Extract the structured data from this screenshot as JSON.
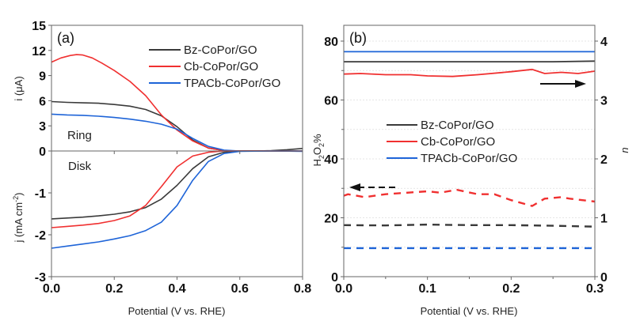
{
  "chart_data": [
    {
      "type": "line",
      "panel_label": "(a)",
      "xlabel": "Potential (V vs. RHE)",
      "xlim": [
        0.0,
        0.8
      ],
      "xticks": [
        "0.0",
        "0.2",
        "0.4",
        "0.6",
        "0.8"
      ],
      "xtick_values": [
        0.0,
        0.2,
        0.4,
        0.6,
        0.8
      ],
      "subplots": [
        {
          "name": "ring",
          "annotation": "Ring",
          "ylabel": "i (μA)",
          "ylim": [
            0,
            15
          ],
          "yticks": [
            "0",
            "3",
            "6",
            "9",
            "12",
            "15"
          ],
          "ytick_values": [
            0,
            3,
            6,
            9,
            12,
            15
          ],
          "series": [
            {
              "name": "Bz-CoPor/GO",
              "color": "#3a3a3a",
              "x": [
                0.0,
                0.05,
                0.1,
                0.15,
                0.2,
                0.25,
                0.3,
                0.35,
                0.4,
                0.45,
                0.5,
                0.55,
                0.6,
                0.65,
                0.7,
                0.75,
                0.8
              ],
              "y": [
                5.9,
                5.8,
                5.75,
                5.7,
                5.55,
                5.35,
                4.95,
                4.2,
                2.9,
                1.3,
                0.35,
                0.05,
                0.0,
                0.0,
                0.05,
                0.15,
                0.3
              ]
            },
            {
              "name": "Cb-CoPor/GO",
              "color": "#f03030",
              "x": [
                0.0,
                0.03,
                0.06,
                0.08,
                0.1,
                0.13,
                0.16,
                0.2,
                0.25,
                0.3,
                0.35,
                0.4,
                0.45,
                0.5,
                0.55,
                0.6,
                0.7,
                0.8
              ],
              "y": [
                10.6,
                11.1,
                11.4,
                11.5,
                11.45,
                11.1,
                10.5,
                9.6,
                8.3,
                6.6,
                4.3,
                2.5,
                1.2,
                0.35,
                0.05,
                0.0,
                0.0,
                0.0
              ]
            },
            {
              "name": "TPACb-CoPor/GO",
              "color": "#1e64d8",
              "x": [
                0.0,
                0.05,
                0.1,
                0.15,
                0.2,
                0.25,
                0.3,
                0.35,
                0.4,
                0.45,
                0.5,
                0.55,
                0.6,
                0.7,
                0.8
              ],
              "y": [
                4.4,
                4.3,
                4.25,
                4.15,
                4.0,
                3.8,
                3.55,
                3.2,
                2.6,
                1.5,
                0.55,
                0.1,
                0.0,
                0.0,
                -0.05
              ]
            }
          ]
        },
        {
          "name": "disk",
          "annotation": "Disk",
          "ylabel": "j (mA cm⁻²)",
          "ylim": [
            -3,
            0
          ],
          "yticks": [
            "-3",
            "-2",
            "-1",
            "0"
          ],
          "ytick_values": [
            -3,
            -2,
            -1,
            0
          ],
          "series": [
            {
              "name": "Bz-CoPor/GO",
              "color": "#3a3a3a",
              "x": [
                0.0,
                0.05,
                0.1,
                0.15,
                0.2,
                0.25,
                0.3,
                0.35,
                0.4,
                0.45,
                0.5,
                0.55,
                0.6,
                0.7,
                0.8
              ],
              "y": [
                -1.62,
                -1.6,
                -1.58,
                -1.55,
                -1.51,
                -1.45,
                -1.35,
                -1.15,
                -0.82,
                -0.42,
                -0.14,
                -0.03,
                0.0,
                0.0,
                0.0
              ]
            },
            {
              "name": "Cb-CoPor/GO",
              "color": "#f03030",
              "x": [
                0.0,
                0.05,
                0.1,
                0.15,
                0.2,
                0.25,
                0.3,
                0.35,
                0.4,
                0.45,
                0.5,
                0.55,
                0.6,
                0.7,
                0.8
              ],
              "y": [
                -1.83,
                -1.8,
                -1.77,
                -1.73,
                -1.66,
                -1.55,
                -1.3,
                -0.85,
                -0.38,
                -0.12,
                -0.03,
                0.0,
                0.0,
                0.0,
                0.0
              ]
            },
            {
              "name": "TPACb-CoPor/GO",
              "color": "#1e64d8",
              "x": [
                0.0,
                0.05,
                0.1,
                0.15,
                0.2,
                0.25,
                0.3,
                0.35,
                0.4,
                0.45,
                0.5,
                0.55,
                0.6,
                0.7,
                0.8
              ],
              "y": [
                -2.32,
                -2.27,
                -2.22,
                -2.17,
                -2.1,
                -2.02,
                -1.9,
                -1.7,
                -1.3,
                -0.7,
                -0.25,
                -0.06,
                -0.01,
                0.0,
                0.0
              ]
            }
          ]
        }
      ],
      "legend": {
        "entries": [
          "Bz-CoPor/GO",
          "Cb-CoPor/GO",
          "TPACb-CoPor/GO"
        ],
        "placement": "top-right"
      }
    },
    {
      "type": "line",
      "panel_label": "(b)",
      "xlabel": "Potential (V vs. RHE)",
      "xlim": [
        0.0,
        0.3
      ],
      "xticks": [
        "0.0",
        "0.1",
        "0.2",
        "0.3"
      ],
      "xtick_values": [
        0.0,
        0.1,
        0.2,
        0.3
      ],
      "ylabel_left": "H₂O₂%",
      "ylim_left": [
        0,
        85
      ],
      "yticks_left": [
        "0",
        "20",
        "40",
        "60",
        "80"
      ],
      "ytick_values_left": [
        0,
        20,
        40,
        60,
        80
      ],
      "ylabel_right": "n",
      "ylim_right": [
        0,
        4.25
      ],
      "yticks_right": [
        "0",
        "1",
        "2",
        "3",
        "4"
      ],
      "ytick_values_right": [
        0,
        1,
        2,
        3,
        4
      ],
      "grid": true,
      "series_n": [
        {
          "name": "Bz-CoPor/GO",
          "color": "#3a3a3a",
          "axis": "right",
          "style": "solid",
          "x": [
            0.0,
            0.05,
            0.1,
            0.15,
            0.2,
            0.25,
            0.3
          ],
          "y": [
            3.65,
            3.65,
            3.65,
            3.65,
            3.65,
            3.65,
            3.66
          ]
        },
        {
          "name": "Cb-CoPor/GO",
          "color": "#f03030",
          "axis": "right",
          "style": "solid",
          "x": [
            0.0,
            0.02,
            0.05,
            0.08,
            0.1,
            0.13,
            0.16,
            0.2,
            0.225,
            0.24,
            0.26,
            0.28,
            0.3
          ],
          "y": [
            3.44,
            3.45,
            3.43,
            3.43,
            3.41,
            3.4,
            3.43,
            3.48,
            3.52,
            3.45,
            3.47,
            3.45,
            3.49
          ]
        },
        {
          "name": "TPACb-CoPor/GO",
          "color": "#1e64d8",
          "axis": "right",
          "style": "solid",
          "x": [
            0.0,
            0.3
          ],
          "y": [
            3.82,
            3.82
          ]
        }
      ],
      "series_h2o2": [
        {
          "name": "Bz-CoPor/GO",
          "color": "#3a3a3a",
          "axis": "left",
          "style": "dashed",
          "x": [
            0.0,
            0.05,
            0.1,
            0.15,
            0.2,
            0.25,
            0.3
          ],
          "y": [
            17.5,
            17.4,
            17.7,
            17.5,
            17.5,
            17.3,
            17.0
          ]
        },
        {
          "name": "Cb-CoPor/GO",
          "color": "#f03030",
          "axis": "left",
          "style": "dashed",
          "x": [
            0.0,
            0.005,
            0.025,
            0.05,
            0.1,
            0.115,
            0.135,
            0.16,
            0.18,
            0.2,
            0.225,
            0.24,
            0.26,
            0.27,
            0.3
          ],
          "y": [
            27.5,
            28.0,
            27.0,
            28.0,
            29.0,
            28.5,
            29.5,
            28.0,
            28.0,
            26.0,
            24.0,
            26.5,
            27.0,
            26.5,
            25.5
          ]
        },
        {
          "name": "TPACb-CoPor/GO",
          "color": "#1e64d8",
          "axis": "left",
          "style": "dashed",
          "x": [
            0.0,
            0.3
          ],
          "y": [
            9.7,
            9.7
          ]
        }
      ],
      "legend": {
        "entries": [
          "Bz-CoPor/GO",
          "Cb-CoPor/GO",
          "TPACb-CoPor/GO"
        ],
        "placement": "center-left"
      },
      "annotations": [
        {
          "type": "arrow",
          "direction": "right",
          "style": "solid",
          "meaning": "n refers to right axis"
        },
        {
          "type": "arrow",
          "direction": "left",
          "style": "dashed",
          "meaning": "H2O2% refers to left axis"
        }
      ]
    }
  ]
}
